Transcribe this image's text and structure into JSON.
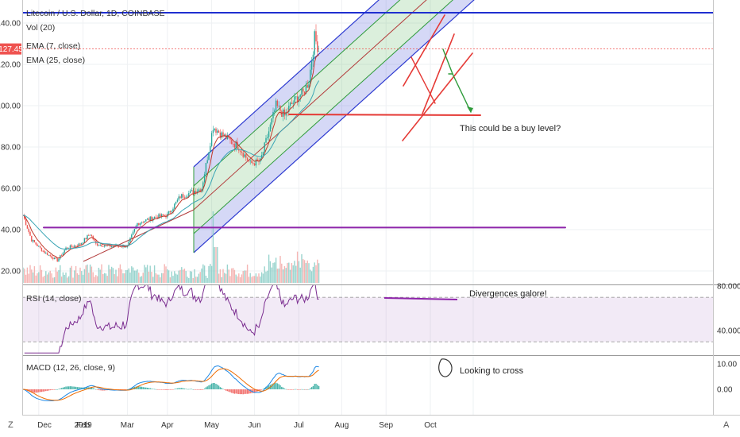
{
  "chart_data": {
    "type": "candlestick",
    "title": "Litecoin / U.S. Dollar, 1D, COINBASE",
    "indicators": {
      "volume": "Vol (20)",
      "ema_fast": "EMA (7, close)",
      "ema_slow": "EMA (25, close)",
      "rsi": "RSI (14, close)",
      "macd": "MACD (12, 26, close, 9)"
    },
    "price_axis": {
      "ticks": [
        "140.00",
        "120.00",
        "100.00",
        "80.00",
        "60.00",
        "40.00",
        "20.00"
      ],
      "ylim": [
        15,
        147
      ]
    },
    "last_price": "127.45",
    "rsi_axis": {
      "ticks": [
        "80.0000",
        "40.0000"
      ]
    },
    "macd_axis": {
      "ticks": [
        "10.00",
        "0.00"
      ]
    },
    "x_axis": {
      "ticks": [
        "Dec",
        "2019",
        "Feb",
        "Mar",
        "Apr",
        "May",
        "Jun",
        "Jul",
        "Aug",
        "Sep",
        "Oct"
      ]
    },
    "price_anchors": [
      [
        "2018-11-20",
        47
      ],
      [
        "2018-11-26",
        35
      ],
      [
        "2018-12-05",
        29
      ],
      [
        "2018-12-14",
        25
      ],
      [
        "2018-12-20",
        31
      ],
      [
        "2018-12-30",
        33
      ],
      [
        "2019-01-06",
        38
      ],
      [
        "2019-01-10",
        33
      ],
      [
        "2019-01-20",
        32
      ],
      [
        "2019-02-01",
        32
      ],
      [
        "2019-02-08",
        43
      ],
      [
        "2019-02-20",
        46
      ],
      [
        "2019-03-01",
        47
      ],
      [
        "2019-03-10",
        56
      ],
      [
        "2019-03-25",
        60
      ],
      [
        "2019-04-02",
        90
      ],
      [
        "2019-04-08",
        86
      ],
      [
        "2019-04-20",
        80
      ],
      [
        "2019-04-28",
        72
      ],
      [
        "2019-05-05",
        73
      ],
      [
        "2019-05-12",
        90
      ],
      [
        "2019-05-16",
        100
      ],
      [
        "2019-05-22",
        95
      ],
      [
        "2019-05-26",
        100
      ],
      [
        "2019-06-01",
        105
      ],
      [
        "2019-06-04",
        106
      ],
      [
        "2019-06-08",
        112
      ],
      [
        "2019-06-12",
        133
      ],
      [
        "2019-06-15",
        127
      ]
    ],
    "annotations": [
      "This could be a buy level?",
      "Divergences galore!",
      "Looking to cross"
    ],
    "drawing_levels": {
      "horizontal_resistance": 145,
      "buy_level": 96,
      "support_line": 41
    }
  },
  "footer": {
    "left_button": "Z",
    "right_button": "A"
  }
}
